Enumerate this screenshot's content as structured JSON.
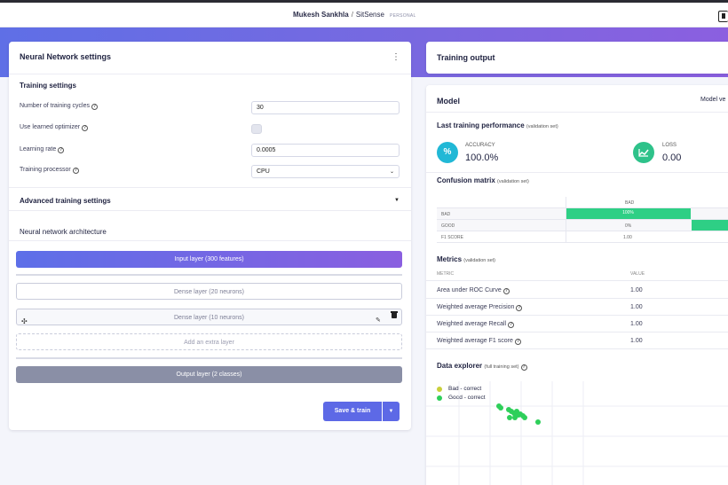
{
  "header": {
    "user": "Mukesh Sankhla",
    "separator": "/",
    "project": "SitSense",
    "badge": "PERSONAL"
  },
  "settings": {
    "title": "Neural Network settings",
    "training_section": "Training settings",
    "fields": [
      {
        "label": "Number of training cycles",
        "value": "30"
      },
      {
        "label": "Use learned optimizer",
        "value": ""
      },
      {
        "label": "Learning rate",
        "value": "0.0005"
      },
      {
        "label": "Training processor",
        "value": "CPU"
      }
    ],
    "advanced": "Advanced training settings",
    "architecture_title": "Neural network architecture",
    "layers": {
      "input": "Input layer (300 features)",
      "dense1": "Dense layer (20 neurons)",
      "dense2": "Dense layer (10 neurons)",
      "extra": "Add an extra layer",
      "output": "Output layer (2 classes)"
    },
    "save_label": "Save & train"
  },
  "output": {
    "title": "Training output"
  },
  "model": {
    "title": "Model",
    "version_label": "Model ve",
    "performance_title": "Last training performance",
    "performance_sub": "(validation set)",
    "accuracy_label": "ACCURACY",
    "accuracy_value": "100.0%",
    "loss_label": "LOSS",
    "loss_value": "0.00",
    "confusion_title": "Confusion matrix",
    "confusion_sub": "(validation set)",
    "confusion": {
      "col_header": "BAD",
      "rows": [
        {
          "label": "BAD",
          "bad": "100%"
        },
        {
          "label": "GOOD",
          "bad": "0%"
        },
        {
          "label": "F1 SCORE",
          "bad": "1.00"
        }
      ]
    },
    "metrics_title": "Metrics",
    "metrics_sub": "(validation set)",
    "metrics_headers": {
      "metric": "METRIC",
      "value": "VALUE"
    },
    "metrics": [
      {
        "name": "Area under ROC Curve",
        "value": "1.00"
      },
      {
        "name": "Weighted average Precision",
        "value": "1.00"
      },
      {
        "name": "Weighted average Recall",
        "value": "1.00"
      },
      {
        "name": "Weighted average F1 score",
        "value": "1.00"
      }
    ],
    "explorer_title": "Data explorer",
    "explorer_sub": "(full training set)",
    "legend": [
      {
        "name": "Bad - correct",
        "color": "#c9cf3a"
      },
      {
        "name": "Good - correct",
        "color": "#2ecf5a"
      }
    ]
  },
  "colors": {
    "accent": "#5d69e6",
    "green": "#2ecf85",
    "kpi_accuracy": "#21b8d6",
    "kpi_loss": "#2ec28a"
  }
}
